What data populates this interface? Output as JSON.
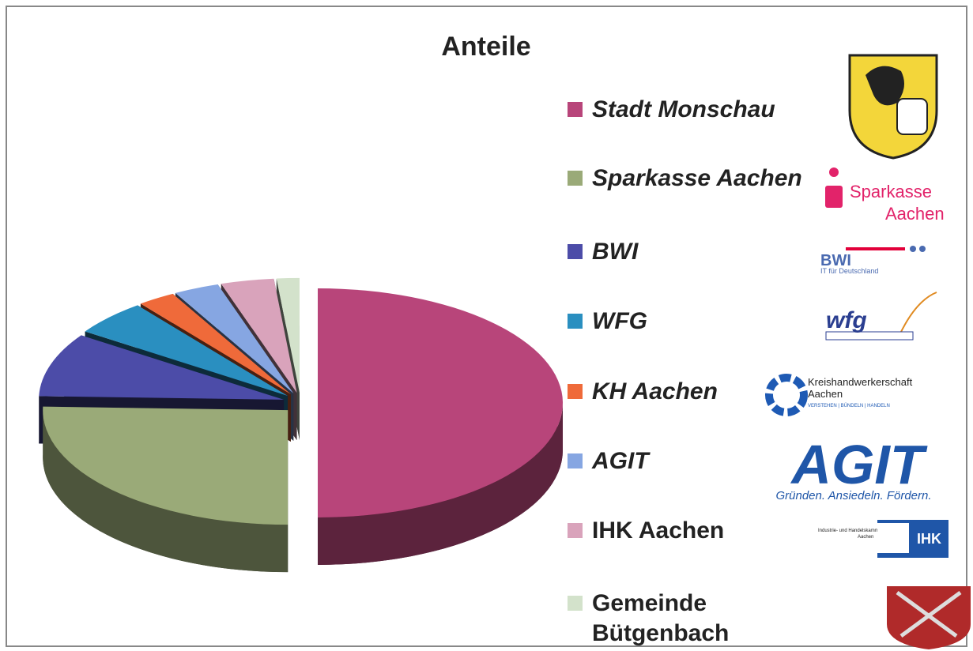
{
  "chart_data": {
    "type": "pie3d",
    "title": "Anteile",
    "categories": [
      "Stadt Monschau",
      "Sparkasse Aachen",
      "BWI",
      "WFG",
      "KH Aachen",
      "AGIT",
      "IHK Aachen",
      "Gemeinde Bütgenbach (Belgien)"
    ],
    "values": [
      50,
      25.5,
      9,
      5,
      2.5,
      3,
      3.5,
      1.5
    ],
    "colors": [
      "#b8457a",
      "#9aaa78",
      "#4c4ca8",
      "#2a8fc0",
      "#ef6a3a",
      "#86a6e2",
      "#d9a3bb",
      "#d3e2cb"
    ],
    "italic": [
      true,
      true,
      true,
      true,
      true,
      true,
      false,
      false
    ],
    "logos": {
      "sparkasse": [
        "Sparkasse",
        "Aachen"
      ],
      "bwi": [
        "BWI",
        "IT für Deutschland"
      ],
      "wfg": "wfg",
      "kh": [
        "Kreishandwerkerschaft",
        "Aachen",
        "VERSTEHEN | BÜNDELN | HANDELN"
      ],
      "agit": [
        "AGIT",
        "Gründen. Ansiedeln. Fördern."
      ],
      "ihk": [
        "Industrie- und Handelskammer",
        "Aachen",
        "IHK"
      ]
    }
  }
}
